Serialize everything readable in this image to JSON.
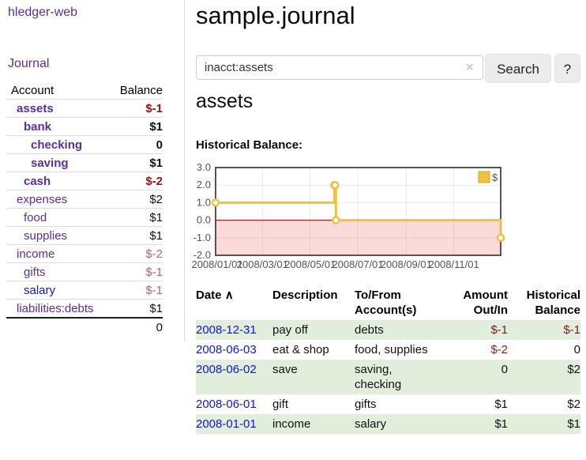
{
  "app": {
    "brand": "hledger-web",
    "nav_journal": "Journal"
  },
  "sidebar": {
    "header": {
      "account": "Account",
      "balance": "Balance"
    },
    "accounts": [
      {
        "name": "assets",
        "balance": "$-1",
        "depth": 1,
        "bold": true
      },
      {
        "name": "bank",
        "balance": "$1",
        "depth": 2,
        "bold": true
      },
      {
        "name": "checking",
        "balance": "0",
        "depth": 3,
        "bold": true
      },
      {
        "name": "saving",
        "balance": "$1",
        "depth": 3,
        "bold": true
      },
      {
        "name": "cash",
        "balance": "$-2",
        "depth": 2,
        "bold": true
      },
      {
        "name": "expenses",
        "balance": "$2",
        "depth": 1,
        "bold": false
      },
      {
        "name": "food",
        "balance": "$1",
        "depth": 2,
        "bold": false
      },
      {
        "name": "supplies",
        "balance": "$1",
        "depth": 2,
        "bold": false
      },
      {
        "name": "income",
        "balance": "$-2",
        "depth": 1,
        "bold": false
      },
      {
        "name": "gifts",
        "balance": "$-1",
        "depth": 2,
        "bold": false
      },
      {
        "name": "salary",
        "balance": "$-1",
        "depth": 2,
        "bold": false
      },
      {
        "name": "liabilities:debts",
        "balance": "$1",
        "depth": 1,
        "bold": false
      }
    ],
    "total": "0"
  },
  "main": {
    "title": "sample.journal",
    "search": {
      "value": "inacct:assets",
      "clear_icon": "×",
      "search_label": "Search",
      "help_label": "?"
    },
    "account_heading": "assets",
    "chart_label": "Historical Balance:"
  },
  "chart_data": {
    "type": "line",
    "title": "Historical Balance:",
    "series": [
      {
        "name": "$",
        "color": "#edc240",
        "step": true,
        "points": [
          [
            "2008-01-01",
            1
          ],
          [
            "2008-06-01",
            2
          ],
          [
            "2008-06-02",
            2
          ],
          [
            "2008-06-03",
            0
          ],
          [
            "2008-12-31",
            -1
          ]
        ]
      }
    ],
    "ylim": [
      -2,
      3
    ],
    "yticks": [
      "3.0",
      "2.0",
      "1.0",
      "0.0",
      "-1.0",
      "-2.0"
    ],
    "xticks": [
      "2008/01/01",
      "2008/03/01",
      "2008/05/01",
      "2008/07/01",
      "2008/09/01",
      "2008/11/01"
    ],
    "x_range": [
      "2008-01-01",
      "2008-12-31"
    ],
    "grid": true,
    "legend_position": "top-right",
    "colors": {
      "line": "#edc240",
      "marker_fill": "#ffffff",
      "negative_region_fill": "#fbdada",
      "zero_line": "#8b0000",
      "border": "#545454",
      "axis_text": "#545454",
      "gridline": "rgba(0,0,0,0.08)"
    }
  },
  "register": {
    "headers": {
      "date": "Date",
      "description": "Description",
      "accounts": "To/From Account(s)",
      "amount": "Amount Out/In",
      "balance": "Historical Balance"
    },
    "sort_indicator": "∧",
    "rows": [
      {
        "date": "2008-12-31",
        "description": "pay off",
        "accounts": "debts",
        "accounts2": "",
        "amount": "$-1",
        "balance": "$-1"
      },
      {
        "date": "2008-06-03",
        "description": "eat & shop",
        "accounts": "food, supplies",
        "accounts2": "",
        "amount": "$-2",
        "balance": "0"
      },
      {
        "date": "2008-06-02",
        "description": "save",
        "accounts": "saving,",
        "accounts2": "checking",
        "amount": "0",
        "balance": "$2"
      },
      {
        "date": "2008-06-01",
        "description": "gift",
        "accounts": "gifts",
        "accounts2": "",
        "amount": "$1",
        "balance": "$2"
      },
      {
        "date": "2008-01-01",
        "description": "income",
        "accounts": "salary",
        "accounts2": "",
        "amount": "$1",
        "balance": "$1"
      }
    ]
  }
}
